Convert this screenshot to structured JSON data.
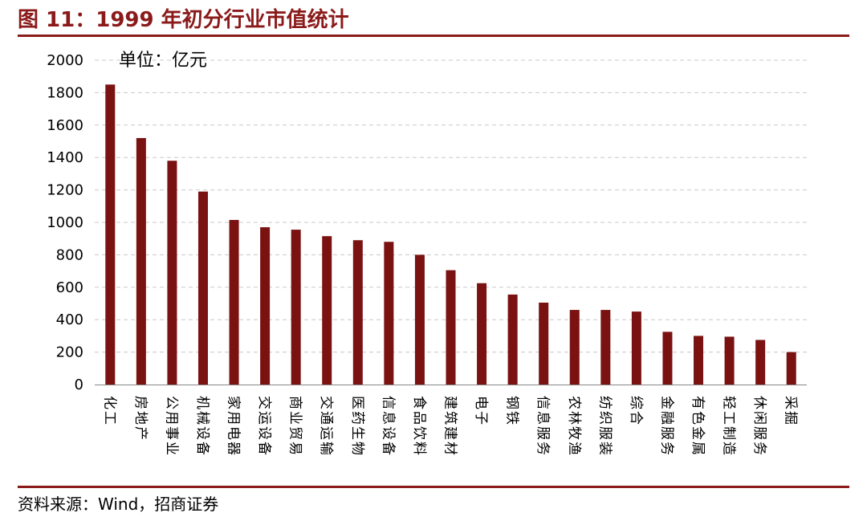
{
  "header": {
    "title": "图 11：1999 年初分行业市值统计"
  },
  "footer": {
    "source": "资料来源：Wind，招商证券"
  },
  "colors": {
    "accent": "#8b1a1a",
    "bar": "#7a1212",
    "grid": "#c8c8c8"
  },
  "chart_data": {
    "type": "bar",
    "title": "",
    "unit_label": "单位：亿元",
    "xlabel": "",
    "ylabel": "",
    "ylim": [
      0,
      2000
    ],
    "yticks": [
      0,
      200,
      400,
      600,
      800,
      1000,
      1200,
      1400,
      1600,
      1800,
      2000
    ],
    "grid": true,
    "legend": "none",
    "categories": [
      "化工",
      "房地产",
      "公用事业",
      "机械设备",
      "家用电器",
      "交运设备",
      "商业贸易",
      "交通运输",
      "医药生物",
      "信息设备",
      "食品饮料",
      "建筑建材",
      "电子",
      "钢铁",
      "信息服务",
      "农林牧渔",
      "纺织服装",
      "综合",
      "金融服务",
      "有色金属",
      "轻工制造",
      "休闲服务",
      "采掘"
    ],
    "values": [
      1850,
      1520,
      1380,
      1190,
      1015,
      970,
      955,
      915,
      890,
      880,
      800,
      705,
      625,
      555,
      505,
      460,
      460,
      450,
      325,
      300,
      295,
      275,
      200
    ]
  }
}
